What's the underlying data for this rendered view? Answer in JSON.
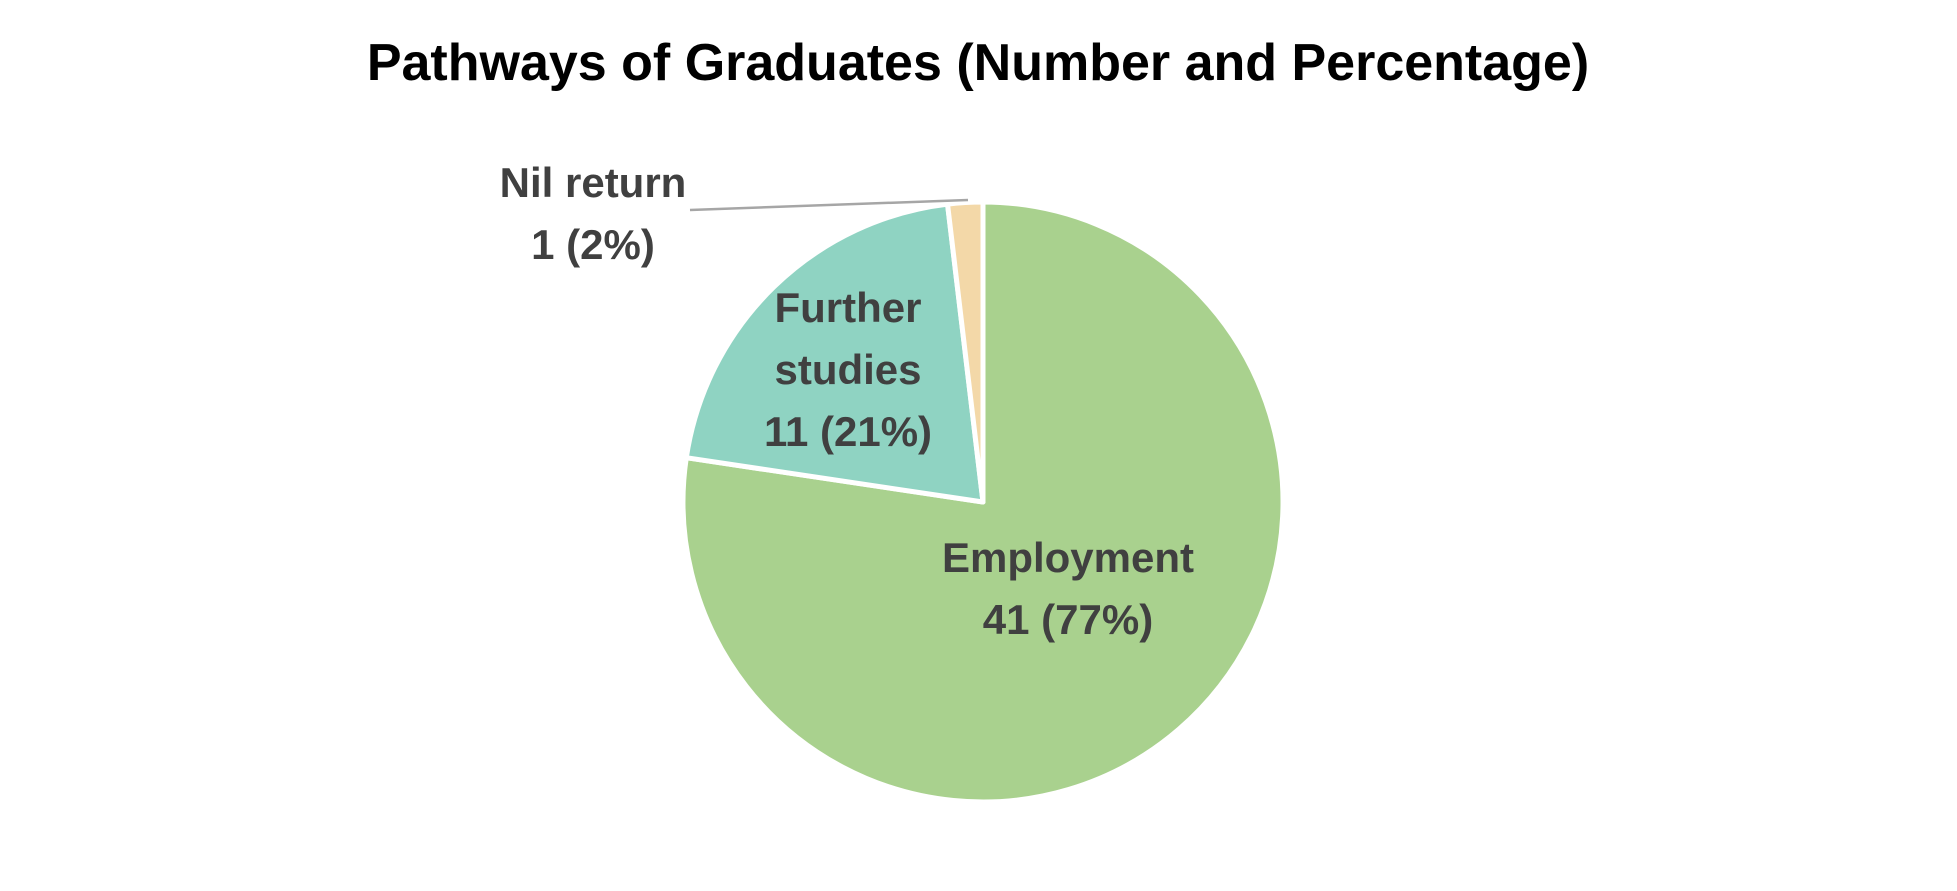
{
  "chart_data": {
    "type": "pie",
    "title": "Pathways of Graduates (Number and Percentage)",
    "slices": [
      {
        "name": "Employment",
        "value": 41,
        "percent_label": "41 (77%)",
        "label_lines": [
          "Employment",
          "41 (77%)"
        ],
        "color": "#a9d18e"
      },
      {
        "name": "Further studies",
        "value": 11,
        "percent_label": "11 (21%)",
        "label_lines": [
          "Further",
          "studies",
          "11 (21%)"
        ],
        "color": "#8fd3c2"
      },
      {
        "name": "Nil return",
        "value": 1,
        "percent_label": "1 (2%)",
        "label_lines": [
          "Nil return",
          "1 (2%)"
        ],
        "color": "#f3d8a8"
      }
    ],
    "start_angle": "12 o'clock",
    "direction": "clockwise",
    "legend": "none",
    "data_labels": "inside, outside with leader line for smallest slice"
  }
}
